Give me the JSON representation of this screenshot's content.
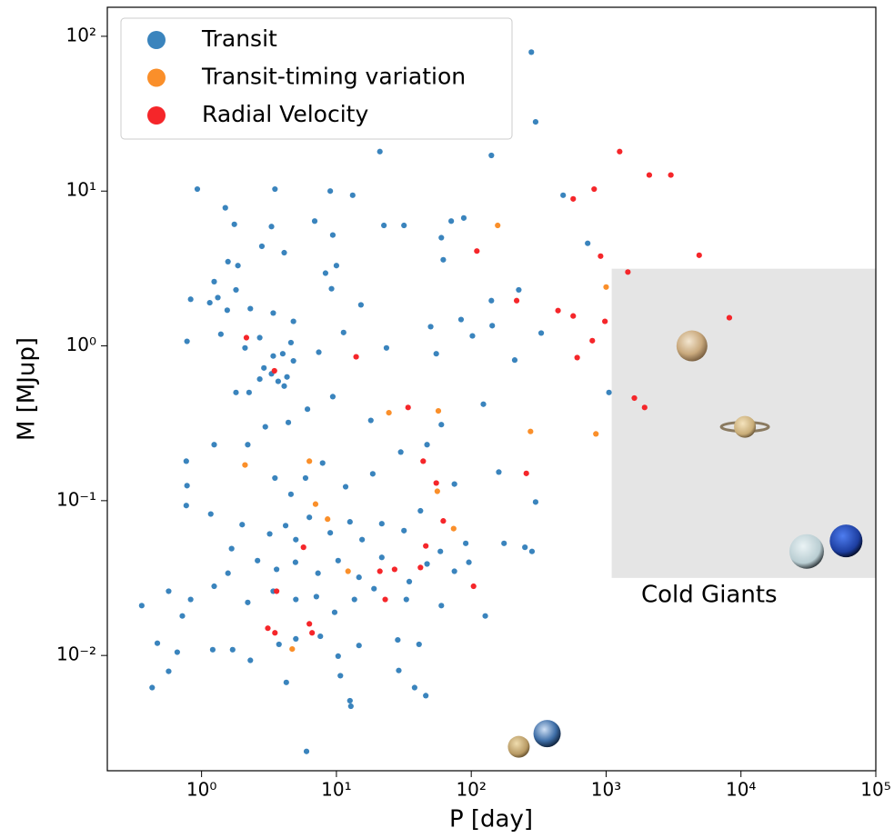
{
  "chart_data": {
    "type": "scatter",
    "xlabel": "P [day]",
    "ylabel": "M [MJup]",
    "xscale": "log",
    "yscale": "log",
    "xlim": [
      0.2,
      100000
    ],
    "ylim": [
      0.0018,
      154
    ],
    "xticks": [
      {
        "value": 1,
        "label": "10⁰"
      },
      {
        "value": 10,
        "label": "10¹"
      },
      {
        "value": 100,
        "label": "10²"
      },
      {
        "value": 1000,
        "label": "10³"
      },
      {
        "value": 10000,
        "label": "10⁴"
      },
      {
        "value": 100000,
        "label": "10⁵"
      }
    ],
    "yticks": [
      {
        "value": 0.01,
        "label": "10⁻²"
      },
      {
        "value": 0.1,
        "label": "10⁻¹"
      },
      {
        "value": 1,
        "label": "10⁰"
      },
      {
        "value": 10,
        "label": "10¹"
      },
      {
        "value": 100,
        "label": "10²"
      }
    ],
    "legend": "upper left",
    "region": {
      "xlim": [
        1100,
        100000
      ],
      "ylim": [
        0.0317,
        3.15
      ],
      "color": "#e5e5e5",
      "label": "Cold Giants"
    },
    "solar_system": {
      "x": [
        4330,
        10700,
        30700,
        60200,
        365,
        225
      ],
      "y": [
        1.0,
        0.3,
        0.047,
        0.055,
        0.00313,
        0.00257
      ]
    },
    "series": [
      {
        "name": "Transit",
        "color": "#3a84bd",
        "x": [
          279,
          300,
          141,
          21,
          0.93,
          3.5,
          9.0,
          13.2,
          480,
          1.5,
          1.75,
          3.3,
          6.9,
          22.5,
          31.7,
          71,
          88,
          9.4,
          60,
          730,
          2.8,
          4.1,
          62,
          10,
          225,
          1.57,
          1.86,
          1.24,
          1.8,
          1.15,
          0.83,
          1.32,
          1.55,
          2.3,
          3.4,
          4.8,
          8.3,
          9.2,
          15.2,
          141,
          50,
          84,
          143,
          330,
          0.78,
          1.39,
          2.1,
          2.7,
          3.4,
          4.0,
          2.9,
          3.3,
          3.7,
          4.1,
          4.3,
          4.8,
          2.7,
          2.25,
          1.8,
          4.6,
          7.4,
          11.3,
          23.5,
          55,
          102,
          210,
          1050,
          123,
          60,
          18,
          9.4,
          6.1,
          4.4,
          2.97,
          2.2,
          1.24,
          0.77,
          3.5,
          4.6,
          5.9,
          7.9,
          11.7,
          18.6,
          30,
          47,
          75,
          160,
          300,
          0.78,
          0.77,
          1.17,
          2.0,
          3.2,
          4.2,
          5.0,
          6.3,
          9.0,
          12.6,
          15.5,
          21.7,
          31.7,
          42,
          59,
          91,
          175,
          250,
          282,
          1.67,
          2.6,
          3.6,
          4.97,
          7.3,
          10.3,
          14.7,
          21.7,
          34.7,
          47,
          75,
          96,
          1.57,
          1.24,
          0.83,
          0.36,
          0.57,
          0.72,
          2.2,
          3.4,
          5.0,
          7.1,
          9.7,
          13.6,
          19,
          33,
          60,
          127,
          0.47,
          0.66,
          1.21,
          1.7,
          2.3,
          3.75,
          5.0,
          7.6,
          10.3,
          14.7,
          28.5,
          41,
          0.43,
          0.57,
          4.25,
          10.7,
          29,
          38,
          12.6,
          12.8,
          6.0,
          46
        ],
        "values": [
          79,
          28,
          17,
          18,
          10.3,
          10.3,
          10,
          9.4,
          9.4,
          7.8,
          6.1,
          5.9,
          6.4,
          6.0,
          6.0,
          6.4,
          6.7,
          5.2,
          5.0,
          4.6,
          4.4,
          4.0,
          3.6,
          3.3,
          2.3,
          3.5,
          3.3,
          2.6,
          2.3,
          1.9,
          2.0,
          2.05,
          1.7,
          1.74,
          1.63,
          1.44,
          2.95,
          2.34,
          1.84,
          1.96,
          1.33,
          1.48,
          1.35,
          1.21,
          1.07,
          1.19,
          0.97,
          1.13,
          0.86,
          0.89,
          0.72,
          0.66,
          0.59,
          0.55,
          0.63,
          0.8,
          0.61,
          0.5,
          0.5,
          1.05,
          0.91,
          1.22,
          0.97,
          0.89,
          1.16,
          0.81,
          0.5,
          0.42,
          0.31,
          0.33,
          0.47,
          0.39,
          0.32,
          0.3,
          0.23,
          0.23,
          0.18,
          0.14,
          0.11,
          0.14,
          0.175,
          0.123,
          0.149,
          0.206,
          0.23,
          0.128,
          0.153,
          0.098,
          0.125,
          0.093,
          0.082,
          0.07,
          0.061,
          0.069,
          0.056,
          0.078,
          0.062,
          0.073,
          0.056,
          0.071,
          0.064,
          0.086,
          0.047,
          0.053,
          0.053,
          0.05,
          0.047,
          0.049,
          0.041,
          0.036,
          0.04,
          0.034,
          0.041,
          0.032,
          0.043,
          0.03,
          0.039,
          0.035,
          0.04,
          0.034,
          0.028,
          0.023,
          0.021,
          0.026,
          0.018,
          0.022,
          0.026,
          0.023,
          0.024,
          0.019,
          0.023,
          0.027,
          0.023,
          0.021,
          0.018,
          0.012,
          0.0105,
          0.0109,
          0.0109,
          0.0093,
          0.0118,
          0.0128,
          0.0133,
          0.0099,
          0.0116,
          0.0126,
          0.0118,
          0.0062,
          0.0079,
          0.0067,
          0.0074,
          0.008,
          0.0062,
          0.0051,
          0.0047,
          0.0024,
          0.0055
        ]
      },
      {
        "name": "Transit-timing variation",
        "color": "#fa8f2a",
        "x": [
          157,
          1000,
          24.5,
          57,
          275,
          840,
          2.1,
          6.3,
          56,
          7.0,
          8.6,
          74,
          12.2,
          4.7
        ],
        "values": [
          6.0,
          2.4,
          0.37,
          0.38,
          0.28,
          0.27,
          0.17,
          0.18,
          0.115,
          0.095,
          0.076,
          0.066,
          0.035,
          0.011
        ]
      },
      {
        "name": "Radial Velocity",
        "color": "#f5262a",
        "x": [
          1260,
          2090,
          3020,
          815,
          570,
          110,
          4900,
          910,
          1450,
          217,
          8200,
          440,
          570,
          980,
          790,
          610,
          14,
          1620,
          1930,
          2.15,
          3.47,
          34,
          44,
          55,
          256,
          62,
          46,
          5.7,
          21,
          27,
          104,
          3.6,
          23,
          3.1,
          3.5,
          6.3,
          6.6,
          42
        ],
        "values": [
          18,
          12.7,
          12.7,
          10.3,
          8.9,
          4.1,
          3.85,
          3.8,
          3.0,
          1.96,
          1.52,
          1.69,
          1.56,
          1.44,
          1.08,
          0.84,
          0.85,
          0.46,
          0.4,
          1.13,
          0.69,
          0.4,
          0.18,
          0.13,
          0.15,
          0.074,
          0.051,
          0.05,
          0.035,
          0.036,
          0.028,
          0.026,
          0.023,
          0.015,
          0.014,
          0.016,
          0.014,
          0.037
        ]
      }
    ]
  }
}
